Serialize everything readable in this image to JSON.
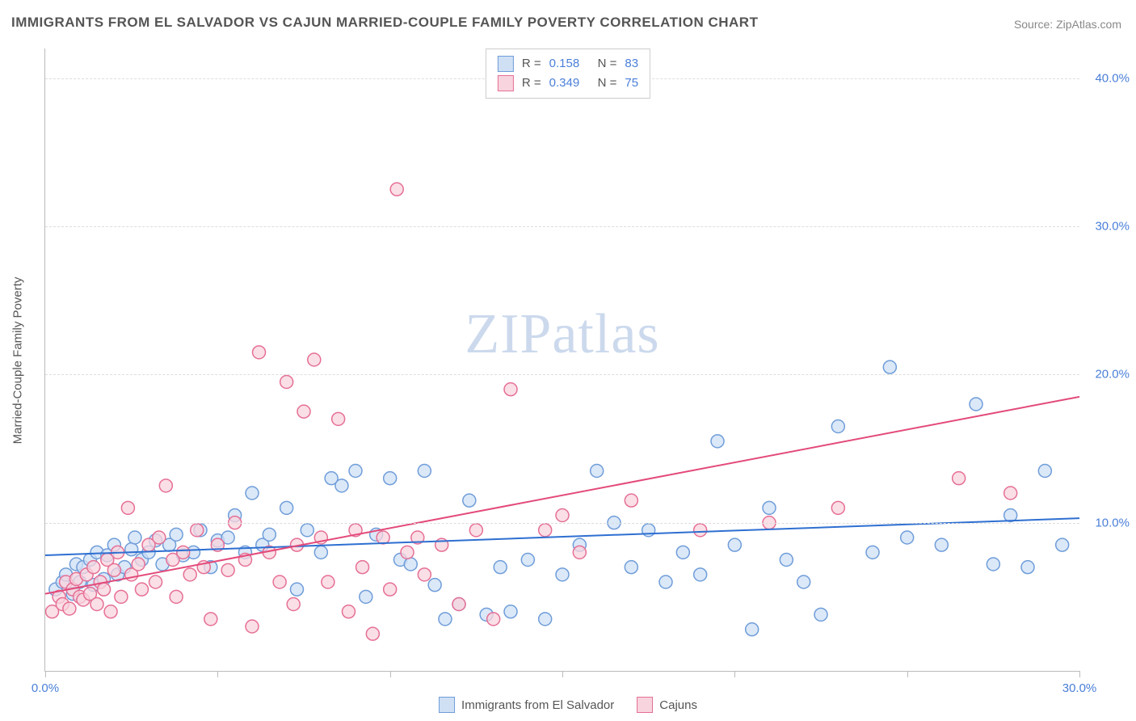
{
  "title": "IMMIGRANTS FROM EL SALVADOR VS CAJUN MARRIED-COUPLE FAMILY POVERTY CORRELATION CHART",
  "source": "Source: ZipAtlas.com",
  "watermark": "ZIPatlas",
  "y_axis_title": "Married-Couple Family Poverty",
  "chart": {
    "type": "scatter",
    "xlim": [
      0,
      30
    ],
    "ylim": [
      0,
      42
    ],
    "x_ticks": [
      0,
      5,
      10,
      15,
      20,
      25,
      30
    ],
    "x_tick_labels": {
      "0": "0.0%",
      "30": "30.0%"
    },
    "y_gridlines": [
      10,
      20,
      30,
      40
    ],
    "y_tick_labels": {
      "10": "10.0%",
      "20": "20.0%",
      "30": "30.0%",
      "40": "40.0%"
    },
    "background_color": "#ffffff",
    "grid_color": "#dddddd",
    "axis_color": "#bbbbbb",
    "tick_label_color": "#4a7fd8",
    "marker_radius": 8,
    "marker_stroke_width": 1.5,
    "series": [
      {
        "name": "Immigrants from El Salvador",
        "fill": "#cfe0f5",
        "stroke": "#6f9dd9",
        "R": "0.158",
        "N": "83",
        "trend": {
          "x1": 0,
          "y1": 7.8,
          "x2": 30,
          "y2": 10.3,
          "color": "#2e6fd1",
          "width": 2
        },
        "points": [
          [
            0.3,
            5.5
          ],
          [
            0.5,
            6.0
          ],
          [
            0.6,
            6.5
          ],
          [
            0.8,
            5.2
          ],
          [
            0.9,
            7.2
          ],
          [
            1.0,
            6.0
          ],
          [
            1.1,
            7.0
          ],
          [
            1.3,
            7.5
          ],
          [
            1.4,
            5.8
          ],
          [
            1.5,
            8.0
          ],
          [
            1.7,
            6.2
          ],
          [
            1.8,
            7.8
          ],
          [
            2.0,
            8.5
          ],
          [
            2.1,
            6.5
          ],
          [
            2.3,
            7.0
          ],
          [
            2.5,
            8.2
          ],
          [
            2.6,
            9.0
          ],
          [
            2.8,
            7.5
          ],
          [
            3.0,
            8.0
          ],
          [
            3.2,
            8.8
          ],
          [
            3.4,
            7.2
          ],
          [
            3.6,
            8.5
          ],
          [
            3.8,
            9.2
          ],
          [
            4.0,
            7.8
          ],
          [
            4.3,
            8.0
          ],
          [
            4.5,
            9.5
          ],
          [
            4.8,
            7.0
          ],
          [
            5.0,
            8.8
          ],
          [
            5.3,
            9.0
          ],
          [
            5.5,
            10.5
          ],
          [
            5.8,
            8.0
          ],
          [
            6.0,
            12.0
          ],
          [
            6.3,
            8.5
          ],
          [
            6.5,
            9.2
          ],
          [
            7.0,
            11.0
          ],
          [
            7.3,
            5.5
          ],
          [
            7.6,
            9.5
          ],
          [
            8.0,
            8.0
          ],
          [
            8.3,
            13.0
          ],
          [
            8.6,
            12.5
          ],
          [
            9.0,
            13.5
          ],
          [
            9.3,
            5.0
          ],
          [
            9.6,
            9.2
          ],
          [
            10.0,
            13.0
          ],
          [
            10.3,
            7.5
          ],
          [
            10.6,
            7.2
          ],
          [
            11.0,
            13.5
          ],
          [
            11.3,
            5.8
          ],
          [
            11.6,
            3.5
          ],
          [
            12.0,
            4.5
          ],
          [
            12.3,
            11.5
          ],
          [
            12.8,
            3.8
          ],
          [
            13.2,
            7.0
          ],
          [
            13.5,
            4.0
          ],
          [
            14.0,
            7.5
          ],
          [
            14.5,
            3.5
          ],
          [
            15.0,
            6.5
          ],
          [
            15.5,
            8.5
          ],
          [
            16.0,
            13.5
          ],
          [
            16.5,
            10.0
          ],
          [
            17.0,
            7.0
          ],
          [
            17.5,
            9.5
          ],
          [
            18.0,
            6.0
          ],
          [
            18.5,
            8.0
          ],
          [
            19.0,
            6.5
          ],
          [
            19.5,
            15.5
          ],
          [
            20.0,
            8.5
          ],
          [
            20.5,
            2.8
          ],
          [
            21.0,
            11.0
          ],
          [
            21.5,
            7.5
          ],
          [
            22.0,
            6.0
          ],
          [
            22.5,
            3.8
          ],
          [
            23.0,
            16.5
          ],
          [
            24.0,
            8.0
          ],
          [
            24.5,
            20.5
          ],
          [
            25.0,
            9.0
          ],
          [
            26.0,
            8.5
          ],
          [
            27.0,
            18.0
          ],
          [
            27.5,
            7.2
          ],
          [
            28.0,
            10.5
          ],
          [
            28.5,
            7.0
          ],
          [
            29.0,
            13.5
          ],
          [
            29.5,
            8.5
          ]
        ]
      },
      {
        "name": "Cajuns",
        "fill": "#f8d4de",
        "stroke": "#e66f95",
        "R": "0.349",
        "N": "75",
        "trend": {
          "x1": 0,
          "y1": 5.2,
          "x2": 30,
          "y2": 18.5,
          "color": "#e34a7a",
          "width": 2
        },
        "points": [
          [
            0.2,
            4.0
          ],
          [
            0.4,
            5.0
          ],
          [
            0.5,
            4.5
          ],
          [
            0.6,
            6.0
          ],
          [
            0.7,
            4.2
          ],
          [
            0.8,
            5.5
          ],
          [
            0.9,
            6.2
          ],
          [
            1.0,
            5.0
          ],
          [
            1.1,
            4.8
          ],
          [
            1.2,
            6.5
          ],
          [
            1.3,
            5.2
          ],
          [
            1.4,
            7.0
          ],
          [
            1.5,
            4.5
          ],
          [
            1.6,
            6.0
          ],
          [
            1.7,
            5.5
          ],
          [
            1.8,
            7.5
          ],
          [
            1.9,
            4.0
          ],
          [
            2.0,
            6.8
          ],
          [
            2.1,
            8.0
          ],
          [
            2.2,
            5.0
          ],
          [
            2.4,
            11.0
          ],
          [
            2.5,
            6.5
          ],
          [
            2.7,
            7.2
          ],
          [
            2.8,
            5.5
          ],
          [
            3.0,
            8.5
          ],
          [
            3.2,
            6.0
          ],
          [
            3.3,
            9.0
          ],
          [
            3.5,
            12.5
          ],
          [
            3.7,
            7.5
          ],
          [
            3.8,
            5.0
          ],
          [
            4.0,
            8.0
          ],
          [
            4.2,
            6.5
          ],
          [
            4.4,
            9.5
          ],
          [
            4.6,
            7.0
          ],
          [
            4.8,
            3.5
          ],
          [
            5.0,
            8.5
          ],
          [
            5.3,
            6.8
          ],
          [
            5.5,
            10.0
          ],
          [
            5.8,
            7.5
          ],
          [
            6.0,
            3.0
          ],
          [
            6.2,
            21.5
          ],
          [
            6.5,
            8.0
          ],
          [
            6.8,
            6.0
          ],
          [
            7.0,
            19.5
          ],
          [
            7.2,
            4.5
          ],
          [
            7.3,
            8.5
          ],
          [
            7.5,
            17.5
          ],
          [
            7.8,
            21.0
          ],
          [
            8.0,
            9.0
          ],
          [
            8.2,
            6.0
          ],
          [
            8.5,
            17.0
          ],
          [
            8.8,
            4.0
          ],
          [
            9.0,
            9.5
          ],
          [
            9.2,
            7.0
          ],
          [
            9.5,
            2.5
          ],
          [
            9.8,
            9.0
          ],
          [
            10.0,
            5.5
          ],
          [
            10.2,
            32.5
          ],
          [
            10.5,
            8.0
          ],
          [
            10.8,
            9.0
          ],
          [
            11.0,
            6.5
          ],
          [
            11.5,
            8.5
          ],
          [
            12.0,
            4.5
          ],
          [
            12.5,
            9.5
          ],
          [
            13.0,
            3.5
          ],
          [
            13.5,
            19.0
          ],
          [
            14.5,
            9.5
          ],
          [
            15.0,
            10.5
          ],
          [
            15.5,
            8.0
          ],
          [
            17.0,
            11.5
          ],
          [
            19.0,
            9.5
          ],
          [
            21.0,
            10.0
          ],
          [
            23.0,
            11.0
          ],
          [
            26.5,
            13.0
          ],
          [
            28.0,
            12.0
          ]
        ]
      }
    ]
  },
  "legend_top": {
    "r_label": "R =",
    "n_label": "N ="
  },
  "legend_bottom": [
    {
      "label": "Immigrants from El Salvador",
      "fill": "#cfe0f5",
      "stroke": "#6f9dd9"
    },
    {
      "label": "Cajuns",
      "fill": "#f8d4de",
      "stroke": "#e66f95"
    }
  ]
}
